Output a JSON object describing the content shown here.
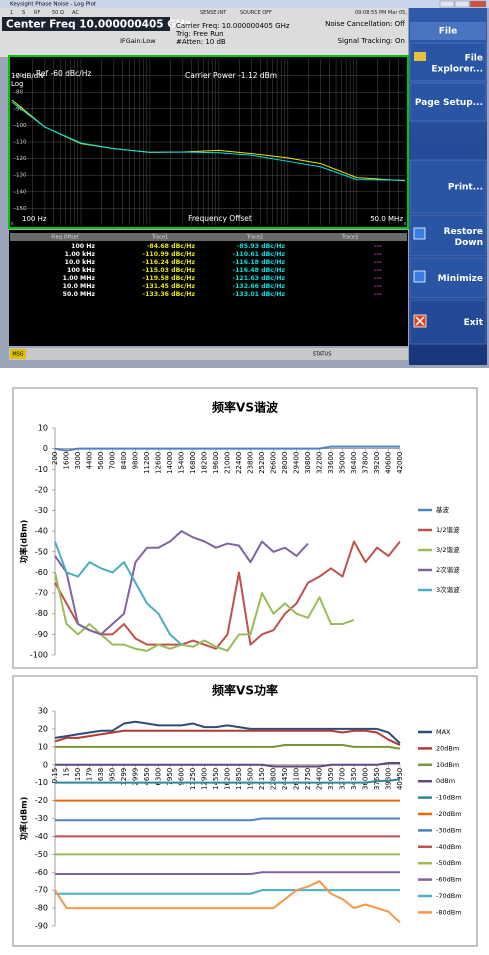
{
  "screenshot": {
    "window_title": "Keysight Phase Noise - Log Plot",
    "status_items": [
      "1",
      "S",
      "RF",
      "50 Ω",
      "AC",
      "SENSE:INT",
      "SOURCE OFF",
      "09:08:55 PM Mar 05, 2025"
    ],
    "center_freq": "Center Freq 10.000000405 GHz",
    "carrier_freq": "Carrier Freq: 10.000000405 GHz",
    "trig": "Trig: Free Run",
    "atten": "#Atten: 10 dB",
    "if_gain": "IFGain:Low",
    "noise_cancellation": "Noise Cancellation: Off",
    "signal_tracking": "Signal Tracking: On",
    "menu": {
      "title": "File",
      "buttons": [
        "File Explorer...",
        "Page Setup...",
        "Print...",
        "Restore Down",
        "Minimize",
        "Exit"
      ]
    },
    "table": {
      "headers": [
        "Freq Offset",
        "Trace1",
        "Trace2",
        "Trace3"
      ],
      "rows": [
        [
          "100 Hz",
          "-84.68 dBc/Hz",
          "-85.93 dBc/Hz",
          "---"
        ],
        [
          "1.00 kHz",
          "-110.99 dBc/Hz",
          "-110.61 dBc/Hz",
          "---"
        ],
        [
          "10.0 kHz",
          "-116.24 dBc/Hz",
          "-116.18 dBc/Hz",
          "---"
        ],
        [
          "100 kHz",
          "-115.03 dBc/Hz",
          "-116.48 dBc/Hz",
          "---"
        ],
        [
          "1.00 MHz",
          "-119.58 dBc/Hz",
          "-121.63 dBc/Hz",
          "---"
        ],
        [
          "10.0 MHz",
          "-131.45 dBc/Hz",
          "-132.66 dBc/Hz",
          "---"
        ],
        [
          "50.0 MHz",
          "-133.36 dBc/Hz",
          "-133.01 dBc/Hz",
          "---"
        ]
      ]
    },
    "msg": "MSG",
    "status": "STATUS"
  },
  "chart_data": [
    {
      "type": "line",
      "log_x": true,
      "scale_label": "10 dB/div",
      "scale_mode": "Log",
      "ref_label": "Ref -60 dBc/Hz",
      "annotation": "Carrier Power -1.12 dBm",
      "x_label": "Frequency Offset",
      "x": [
        100,
        300,
        1000,
        3000,
        10000,
        30000,
        100000,
        300000,
        1000000,
        3000000,
        10000000,
        50000000
      ],
      "xlim": [
        100,
        50000000
      ],
      "xticks": [
        {
          "value": 100,
          "label": "100 Hz"
        },
        {
          "value": 50000000,
          "label": "50.0 MHz"
        }
      ],
      "ylim": [
        -160,
        -60
      ],
      "yticks": [
        -70,
        -80,
        -90,
        -100,
        -110,
        -120,
        -130,
        -140,
        -150
      ],
      "grid": true,
      "series": [
        {
          "color": "#e8e800",
          "values": [
            -84.68,
            -101,
            -110.99,
            -114,
            -116.24,
            -116,
            -115.03,
            -117,
            -119.58,
            -123,
            -131.45,
            -133.36
          ]
        },
        {
          "color": "#00e0e0",
          "values": [
            -85.93,
            -101,
            -110.61,
            -114,
            -116.18,
            -116,
            -116.48,
            -118,
            -121.63,
            -125,
            -132.66,
            -133.01
          ]
        }
      ]
    },
    {
      "type": "line",
      "title": "频率VS谐波",
      "y_label": "功率(dBm)",
      "categories": [
        "200",
        "1600",
        "3000",
        "4400",
        "5600",
        "7000",
        "8400",
        "9800",
        "11200",
        "12600",
        "14000",
        "15400",
        "16800",
        "18200",
        "19600",
        "21000",
        "22400",
        "23800",
        "25200",
        "26600",
        "28000",
        "29400",
        "30800",
        "32200",
        "33600",
        "35000",
        "36400",
        "37800",
        "39200",
        "40600",
        "42000"
      ],
      "ylim": [
        -100,
        10
      ],
      "yticks": [
        10,
        0,
        -10,
        -20,
        -30,
        -40,
        -50,
        -60,
        -70,
        -80,
        -90,
        -100
      ],
      "legend": "right",
      "series": [
        {
          "name": "基波",
          "color": "#4F81BD",
          "values": [
            0,
            -1,
            0,
            0,
            0,
            0,
            0,
            0,
            0,
            0,
            0,
            0,
            0,
            0,
            0,
            0,
            0,
            0,
            0,
            0,
            0,
            0,
            0,
            0,
            1,
            1,
            1,
            1,
            1,
            1,
            1
          ]
        },
        {
          "name": "1/2谐波",
          "color": "#C0504D",
          "values": [
            -65,
            -75,
            -85,
            -88,
            -90,
            -90,
            -85,
            -92,
            -95,
            -95,
            -95,
            -95,
            -93,
            -95,
            -97,
            -90,
            -60,
            -95,
            -90,
            -88,
            -80,
            -75,
            -65,
            -62,
            -58,
            -62,
            -45,
            -55,
            -48,
            -52,
            -45
          ]
        },
        {
          "name": "3/2谐波",
          "color": "#9BBB59",
          "values": [
            -60,
            -85,
            -90,
            -85,
            -90,
            -95,
            -95,
            -97,
            -98,
            -95,
            -97,
            -95,
            -96,
            -93,
            -96,
            -98,
            -90,
            -90,
            -70,
            -80,
            -75,
            -80,
            -82,
            -72,
            -85,
            -85,
            -83,
            null,
            null,
            null,
            null
          ]
        },
        {
          "name": "2次谐波",
          "color": "#8064A2",
          "values": [
            -52,
            -60,
            -85,
            -88,
            -90,
            -85,
            -80,
            -55,
            -48,
            -48,
            -45,
            -40,
            -43,
            -45,
            -48,
            -46,
            -47,
            -55,
            -45,
            -50,
            -48,
            -52,
            -46,
            null,
            null,
            null,
            null,
            null,
            null,
            null,
            null
          ]
        },
        {
          "name": "3次谐波",
          "color": "#4BACC6",
          "values": [
            -45,
            -60,
            -62,
            -55,
            -58,
            -60,
            -55,
            -65,
            -75,
            -80,
            -90,
            -95,
            null,
            null,
            null,
            null,
            null,
            null,
            null,
            null,
            null,
            null,
            null,
            null,
            null,
            null,
            null,
            null,
            null,
            null,
            null
          ]
        }
      ]
    },
    {
      "type": "line",
      "title": "频率VS功率",
      "y_label": "功率(dBm)",
      "categories": [
        "0.15",
        "15",
        "150",
        "179",
        "638",
        "950",
        "1299",
        "2999",
        "4650",
        "6300",
        "7950",
        "9600",
        "11250",
        "12900",
        "14550",
        "16200",
        "17850",
        "19500",
        "21150",
        "22800",
        "24450",
        "26100",
        "27750",
        "29400",
        "31050",
        "32700",
        "34350",
        "36000",
        "37650",
        "39300",
        "40950"
      ],
      "ylim": [
        -90,
        30
      ],
      "yticks": [
        30,
        20,
        10,
        0,
        -10,
        -20,
        -30,
        -40,
        -50,
        -60,
        -70,
        -80,
        -90
      ],
      "legend": "right",
      "series": [
        {
          "name": "MAX",
          "color": "#2C4D75",
          "values": [
            15,
            16,
            17,
            18,
            19,
            19,
            23,
            24,
            23,
            22,
            22,
            22,
            23,
            21,
            21,
            22,
            21,
            20,
            20,
            20,
            20,
            20,
            20,
            20,
            20,
            20,
            20,
            20,
            20,
            18,
            12
          ]
        },
        {
          "name": "20dBm",
          "color": "#B03A36",
          "values": [
            13,
            15,
            15,
            16,
            17,
            18,
            19,
            19,
            19,
            19,
            19,
            19,
            19,
            19,
            19,
            19,
            19,
            19,
            19,
            19,
            19,
            19,
            19,
            19,
            19,
            18,
            19,
            19,
            18,
            14,
            11
          ]
        },
        {
          "name": "10dBm",
          "color": "#77933C",
          "values": [
            10,
            10,
            10,
            10,
            10,
            10,
            10,
            10,
            10,
            10,
            10,
            10,
            10,
            10,
            10,
            10,
            10,
            10,
            10,
            10,
            11,
            11,
            11,
            11,
            11,
            11,
            10,
            10,
            10,
            10,
            9
          ]
        },
        {
          "name": "0dBm",
          "color": "#5F497A",
          "values": [
            0,
            0,
            0,
            0,
            0,
            0,
            0,
            0,
            0,
            0,
            0,
            0,
            0,
            0,
            0,
            0,
            0,
            0,
            0,
            -1,
            -1,
            -1,
            -1,
            -1,
            0,
            0,
            0,
            0,
            0,
            1,
            1
          ]
        },
        {
          "name": "-10dBm",
          "color": "#31859C",
          "values": [
            -10,
            -10,
            -10,
            -10,
            -10,
            -10,
            -10,
            -10,
            -10,
            -10,
            -10,
            -10,
            -10,
            -10,
            -10,
            -10,
            -10,
            -10,
            -10,
            -10,
            -10,
            -10,
            -10,
            -10,
            -10,
            -10,
            -10,
            -10,
            -9,
            -9,
            -8
          ]
        },
        {
          "name": "-20dBm",
          "color": "#E46C0A",
          "values": [
            -20,
            -20,
            -20,
            -20,
            -20,
            -20,
            -20,
            -20,
            -20,
            -20,
            -20,
            -20,
            -20,
            -20,
            -20,
            -20,
            -20,
            -20,
            -20,
            -20,
            -20,
            -20,
            -20,
            -20,
            -20,
            -20,
            -20,
            -20,
            -20,
            -20,
            -20
          ]
        },
        {
          "name": "-30dBm",
          "color": "#4F81BD",
          "values": [
            -31,
            -31,
            -31,
            -31,
            -31,
            -31,
            -31,
            -31,
            -31,
            -31,
            -31,
            -31,
            -31,
            -31,
            -31,
            -31,
            -31,
            -31,
            -30,
            -30,
            -30,
            -30,
            -30,
            -30,
            -30,
            -30,
            -30,
            -30,
            -30,
            -30,
            -30
          ]
        },
        {
          "name": "-40dBm",
          "color": "#C0504D",
          "values": [
            -40,
            -40,
            -40,
            -40,
            -40,
            -40,
            -40,
            -40,
            -40,
            -40,
            -40,
            -40,
            -40,
            -40,
            -40,
            -40,
            -40,
            -40,
            -40,
            -40,
            -40,
            -40,
            -40,
            -40,
            -40,
            -40,
            -40,
            -40,
            -40,
            -40,
            -40
          ]
        },
        {
          "name": "-50dBm",
          "color": "#9BBB59",
          "values": [
            -50,
            -50,
            -50,
            -50,
            -50,
            -50,
            -50,
            -50,
            -50,
            -50,
            -50,
            -50,
            -50,
            -50,
            -50,
            -50,
            -50,
            -50,
            -50,
            -50,
            -50,
            -50,
            -50,
            -50,
            -50,
            -50,
            -50,
            -50,
            -50,
            -50,
            -50
          ]
        },
        {
          "name": "-60dBm",
          "color": "#8064A2",
          "values": [
            -61,
            -61,
            -61,
            -61,
            -61,
            -61,
            -61,
            -61,
            -61,
            -61,
            -61,
            -61,
            -61,
            -61,
            -61,
            -61,
            -61,
            -61,
            -60,
            -60,
            -60,
            -60,
            -60,
            -60,
            -60,
            -60,
            -60,
            -60,
            -60,
            -60,
            -60
          ]
        },
        {
          "name": "-70dBm",
          "color": "#4BACC6",
          "values": [
            -72,
            -72,
            -72,
            -72,
            -72,
            -72,
            -72,
            -72,
            -72,
            -72,
            -72,
            -72,
            -72,
            -72,
            -72,
            -72,
            -72,
            -72,
            -70,
            -70,
            -70,
            -70,
            -70,
            -70,
            -70,
            -70,
            -70,
            -70,
            -70,
            -70,
            -70
          ]
        },
        {
          "name": "-80dBm",
          "color": "#F79646",
          "values": [
            -70,
            -80,
            -80,
            -80,
            -80,
            -80,
            -80,
            -80,
            -80,
            -80,
            -80,
            -80,
            -80,
            -80,
            -80,
            -80,
            -80,
            -80,
            -80,
            -80,
            -75,
            -70,
            -68,
            -65,
            -72,
            -75,
            -80,
            -78,
            -80,
            -82,
            -88
          ]
        }
      ]
    }
  ]
}
